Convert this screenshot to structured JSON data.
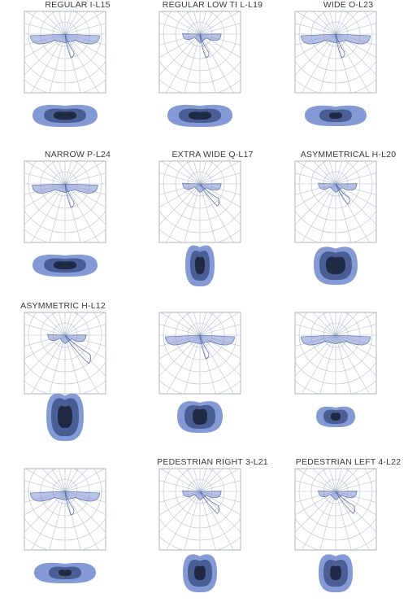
{
  "colors": {
    "grid": "#b4bfcc",
    "frame": "#9aa4b1",
    "beam_fill": "#7d8fd0",
    "beam_stroke": "#4c5fa8",
    "iso_outer": "#6f88cc",
    "iso_mid": "#4a5e96",
    "iso_inner": "#1f2a45",
    "iso_core": "#0b1020",
    "label": "#3a3a3a"
  },
  "panels": [
    {
      "title": "REGULAR I-L15",
      "beam": "wide-narrow",
      "iso": "wide"
    },
    {
      "title": "REGULAR LOW TI L-L19",
      "beam": "asym",
      "iso": "wide"
    },
    {
      "title": "WIDE O-L23",
      "beam": "wide",
      "iso": "flat"
    },
    {
      "title": "NARROW P-L24",
      "beam": "narrow-wide",
      "iso": "wide"
    },
    {
      "title": "EXTRA WIDE Q-L17",
      "beam": "asym-long",
      "iso": "tall"
    },
    {
      "title": "ASYMMETRICAL H-L20",
      "beam": "asym-steep",
      "iso": "big"
    },
    {
      "title": "ASYMMETRIC H-L12",
      "beam": "very-asym",
      "iso": "tall-big"
    },
    {
      "title": "",
      "beam": "wide",
      "iso": "square"
    },
    {
      "title": "",
      "beam": "wide-right",
      "iso": "flat-small"
    },
    {
      "title": "",
      "beam": "wide-narrow2",
      "iso": "flat"
    },
    {
      "title": "PEDESTRIAN RIGHT 3-L21",
      "beam": "asym-right",
      "iso": "ped"
    },
    {
      "title": "PEDESTRIAN LEFT 4-L22",
      "beam": "asym-right",
      "iso": "ped"
    }
  ]
}
